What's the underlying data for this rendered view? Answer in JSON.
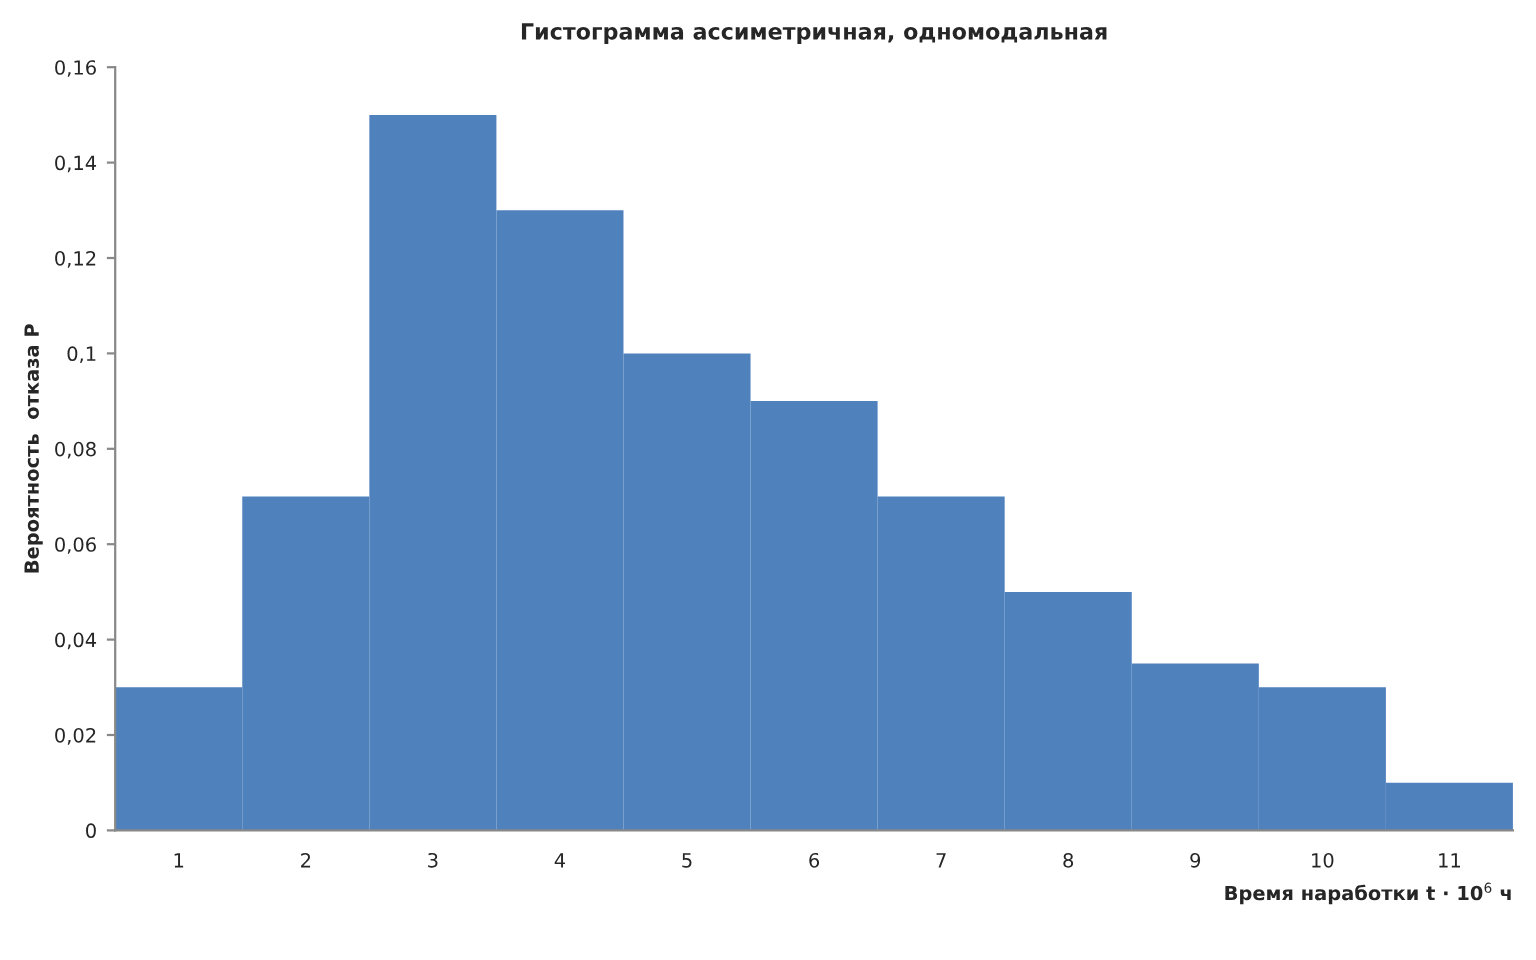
{
  "chart_data": {
    "type": "bar",
    "title": "Гистограмма ассиметричная, одномодальная",
    "xlabel": "Время наработки t · 10$^{6}$ ч",
    "ylabel": "Вероятность  отказа Р",
    "categories": [
      "1",
      "2",
      "3",
      "4",
      "5",
      "6",
      "7",
      "8",
      "9",
      "10",
      "11"
    ],
    "values": [
      0.03,
      0.07,
      0.15,
      0.13,
      0.1,
      0.09,
      0.07,
      0.05,
      0.035,
      0.03,
      0.01
    ],
    "color": "#4f81bd",
    "ylim": [
      0,
      0.16
    ],
    "yticks": [
      0,
      {
        "value": 0.02,
        "label": "0,02"
      },
      {
        "value": 0.04,
        "label": "0,04"
      },
      {
        "value": 0.06,
        "label": "0,06"
      },
      {
        "value": 0.08,
        "label": "0,08"
      },
      {
        "value": 0.1,
        "label": "0,1"
      },
      {
        "value": 0.12,
        "label": "0,12"
      },
      {
        "value": 0.14,
        "label": "0,14"
      },
      {
        "value": 0.16,
        "label": "0,16"
      }
    ],
    "grid": false,
    "legend": false
  }
}
